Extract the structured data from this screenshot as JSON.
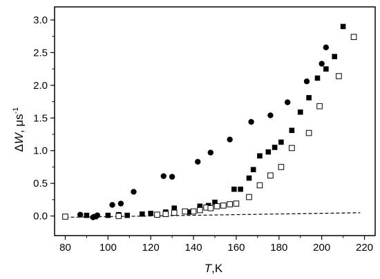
{
  "chart_data": {
    "type": "scatter",
    "xlabel": {
      "symbol": "T",
      "unit": ",K"
    },
    "ylabel": {
      "symbol": "ΔW",
      "unit": ", μs",
      "exponent": "-1"
    },
    "xlim": [
      75,
      225
    ],
    "ylim": [
      -0.3,
      3.2
    ],
    "xticks": [
      80,
      100,
      120,
      140,
      160,
      180,
      200,
      220
    ],
    "xtick_labels": [
      "80",
      "100",
      "120",
      "140",
      "160",
      "180",
      "200",
      "220"
    ],
    "yticks": [
      0.0,
      0.5,
      1.0,
      1.5,
      2.0,
      2.5,
      3.0
    ],
    "ytick_labels": [
      "0.0",
      "0.5",
      "1.0",
      "1.5",
      "2.0",
      "2.5",
      "3.0"
    ],
    "grid": false,
    "legend": "none",
    "series": [
      {
        "marker": "filled-circle",
        "color": "#000000",
        "x": [
          87,
          93,
          95,
          102,
          106,
          112,
          126,
          130,
          142,
          148,
          157,
          167,
          176,
          184,
          193,
          200,
          202
        ],
        "y": [
          0.02,
          -0.02,
          0.01,
          0.17,
          0.19,
          0.37,
          0.61,
          0.6,
          0.83,
          0.97,
          1.17,
          1.44,
          1.54,
          1.74,
          2.06,
          2.33,
          2.58
        ]
      },
      {
        "marker": "filled-square",
        "color": "#000000",
        "x": [
          80,
          90,
          94,
          100,
          105,
          109,
          116,
          120,
          127,
          131,
          138,
          143,
          147,
          150,
          159,
          162,
          166,
          168,
          171,
          175,
          178,
          181,
          186,
          190,
          194,
          198,
          202,
          206,
          210
        ],
        "y": [
          -0.01,
          0.01,
          -0.01,
          0.01,
          0.02,
          0.01,
          0.03,
          0.04,
          0.06,
          0.12,
          0.06,
          0.15,
          0.16,
          0.21,
          0.41,
          0.41,
          0.58,
          0.71,
          0.92,
          0.98,
          1.05,
          1.13,
          1.31,
          1.59,
          1.81,
          2.11,
          2.25,
          2.44,
          2.9
        ]
      },
      {
        "marker": "open-square",
        "color": "#000000",
        "x": [
          80,
          105,
          123,
          127,
          131,
          136,
          140,
          143,
          146,
          148,
          151,
          154,
          157,
          160,
          166,
          171,
          176,
          181,
          186,
          194,
          199,
          208,
          215
        ],
        "y": [
          -0.01,
          0.0,
          0.02,
          0.03,
          0.05,
          0.07,
          0.07,
          0.09,
          0.13,
          0.12,
          0.15,
          0.16,
          0.18,
          0.19,
          0.29,
          0.47,
          0.62,
          0.75,
          1.04,
          1.27,
          1.68,
          2.14,
          2.74
        ]
      }
    ],
    "fit_line": {
      "style": "dashed",
      "color": "#000000",
      "x": [
        80,
        218
      ],
      "y": [
        -0.02,
        0.05
      ]
    }
  }
}
